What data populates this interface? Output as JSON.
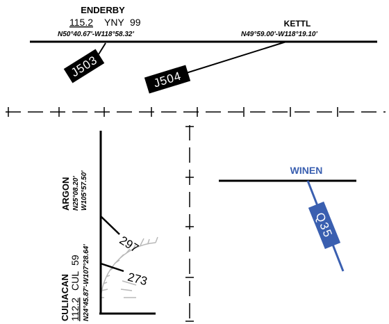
{
  "fixes": {
    "enderby": {
      "name": "ENDERBY",
      "frequency": "115.2",
      "ident": "YNY",
      "channel": "99",
      "coords": "N50°40.67'-W118°58.32'"
    },
    "kettl": {
      "name": "KETTL",
      "coords": "N49°59.00'-W118°19.10'"
    },
    "argon": {
      "name": "ARGON",
      "lat": "N25°08.20'",
      "lon": "W105°57.50'"
    },
    "culiacan": {
      "name": "CULIACAN",
      "frequency": "112.2",
      "ident": "CUL",
      "channel": "59",
      "coords": "N24°45.87'-W107°28.64'"
    },
    "winen": {
      "name": "WINEN"
    }
  },
  "airways": {
    "j503": "J503",
    "j504": "J504",
    "q35": "Q35"
  },
  "radials": {
    "r297": "297",
    "r273": "273"
  },
  "colors": {
    "ink": "#000000",
    "rnav_blue": "#3a5fb0",
    "compass_gray": "#b8b8b8",
    "background": "#ffffff"
  }
}
